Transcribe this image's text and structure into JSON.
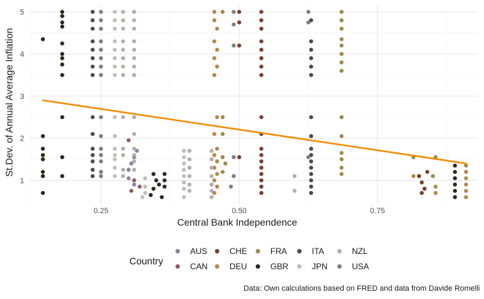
{
  "chart_data": {
    "type": "scatter",
    "xlabel": "Central Bank Independence",
    "ylabel": "St.Dev. of Annual Average Inflation",
    "xlim": [
      0.12,
      0.93
    ],
    "ylim": [
      0.45,
      5.15
    ],
    "x_ticks": [
      0.25,
      0.5,
      0.75
    ],
    "x_tick_labels": [
      "0.25",
      "0.50",
      "0.75"
    ],
    "y_ticks": [
      1,
      2,
      3,
      4,
      5
    ],
    "y_tick_labels": [
      "1",
      "2",
      "3",
      "4",
      "5"
    ],
    "grid": true,
    "legend_title": "Country",
    "legend_position": "bottom",
    "caption": "Data: Own calculations based on FRED and data from Davide Romelli",
    "series": [
      {
        "name": "AUS",
        "color": "#8e7fa0",
        "points": [
          [
            0.3,
            1.25
          ],
          [
            0.305,
            1.4
          ],
          [
            0.31,
            1.55
          ],
          [
            0.315,
            1.7
          ],
          [
            0.3,
            1.05
          ],
          [
            0.31,
            0.9
          ]
        ]
      },
      {
        "name": "CAN",
        "color": "#8f5a60",
        "points": [
          [
            0.3,
            1.95
          ],
          [
            0.31,
            1.0
          ],
          [
            0.32,
            0.85
          ],
          [
            0.305,
            0.75
          ]
        ]
      },
      {
        "name": "CHE",
        "color": "#7a3e2c",
        "points": [
          [
            0.54,
            5.0
          ],
          [
            0.54,
            4.8
          ],
          [
            0.54,
            4.6
          ],
          [
            0.54,
            4.3
          ],
          [
            0.54,
            4.1
          ],
          [
            0.54,
            3.9
          ],
          [
            0.54,
            3.7
          ],
          [
            0.54,
            3.5
          ],
          [
            0.54,
            2.5
          ],
          [
            0.54,
            2.1
          ],
          [
            0.54,
            1.75
          ],
          [
            0.54,
            1.6
          ],
          [
            0.54,
            1.45
          ],
          [
            0.54,
            1.3
          ],
          [
            0.54,
            1.15
          ],
          [
            0.54,
            1.0
          ],
          [
            0.54,
            0.85
          ],
          [
            0.54,
            0.7
          ],
          [
            0.5,
            5.0
          ],
          [
            0.5,
            4.75
          ],
          [
            0.5,
            4.2
          ],
          [
            0.5,
            1.55
          ],
          [
            0.825,
            1.1
          ],
          [
            0.83,
            0.95
          ],
          [
            0.835,
            0.8
          ],
          [
            0.83,
            0.7
          ],
          [
            0.84,
            1.2
          ]
        ]
      },
      {
        "name": "DEU",
        "color": "#b08a4a",
        "points": [
          [
            0.455,
            5.0
          ],
          [
            0.455,
            4.8
          ],
          [
            0.46,
            4.6
          ],
          [
            0.455,
            4.3
          ],
          [
            0.46,
            4.1
          ],
          [
            0.455,
            3.9
          ],
          [
            0.46,
            3.7
          ],
          [
            0.455,
            3.5
          ],
          [
            0.46,
            2.5
          ],
          [
            0.455,
            2.1
          ],
          [
            0.46,
            1.75
          ],
          [
            0.455,
            1.6
          ],
          [
            0.46,
            1.45
          ],
          [
            0.455,
            1.3
          ],
          [
            0.46,
            1.15
          ],
          [
            0.455,
            1.0
          ],
          [
            0.46,
            0.85
          ],
          [
            0.455,
            0.7
          ],
          [
            0.815,
            1.1
          ],
          [
            0.855,
            0.85
          ],
          [
            0.855,
            0.7
          ],
          [
            0.91,
            1.2
          ],
          [
            0.91,
            1.05
          ],
          [
            0.91,
            0.9
          ],
          [
            0.91,
            0.75
          ],
          [
            0.91,
            0.6
          ]
        ]
      },
      {
        "name": "FRA",
        "color": "#9e8a4c",
        "points": [
          [
            0.685,
            5.0
          ],
          [
            0.685,
            4.8
          ],
          [
            0.685,
            4.6
          ],
          [
            0.685,
            4.35
          ],
          [
            0.685,
            4.2
          ],
          [
            0.685,
            4.0
          ],
          [
            0.685,
            3.8
          ],
          [
            0.685,
            3.6
          ],
          [
            0.685,
            2.5
          ],
          [
            0.685,
            2.05
          ],
          [
            0.685,
            1.65
          ],
          [
            0.685,
            1.5
          ],
          [
            0.685,
            1.3
          ],
          [
            0.685,
            1.15
          ],
          [
            0.47,
            5.0
          ],
          [
            0.47,
            2.5
          ],
          [
            0.47,
            2.1
          ],
          [
            0.47,
            1.55
          ],
          [
            0.475,
            1.4
          ],
          [
            0.47,
            1.2
          ],
          [
            0.815,
            1.55
          ],
          [
            0.85,
            1.1
          ],
          [
            0.855,
            1.55
          ],
          [
            0.91,
            1.35
          ]
        ]
      },
      {
        "name": "GBR",
        "color": "#2b271b",
        "points": [
          [
            0.18,
            5.0
          ],
          [
            0.18,
            4.9
          ],
          [
            0.18,
            4.75
          ],
          [
            0.18,
            4.65
          ],
          [
            0.18,
            4.25
          ],
          [
            0.18,
            4.0
          ],
          [
            0.18,
            3.9
          ],
          [
            0.18,
            3.75
          ],
          [
            0.18,
            3.5
          ],
          [
            0.18,
            2.5
          ],
          [
            0.18,
            1.55
          ],
          [
            0.18,
            1.1
          ],
          [
            0.145,
            4.35
          ],
          [
            0.145,
            2.05
          ],
          [
            0.145,
            1.75
          ],
          [
            0.145,
            1.6
          ],
          [
            0.145,
            1.5
          ],
          [
            0.145,
            1.2
          ],
          [
            0.145,
            1.1
          ],
          [
            0.145,
            0.7
          ],
          [
            0.345,
            1.15
          ],
          [
            0.35,
            1.0
          ],
          [
            0.355,
            0.9
          ],
          [
            0.345,
            0.8
          ],
          [
            0.36,
            0.6
          ],
          [
            0.365,
            1.15
          ],
          [
            0.365,
            1.0
          ],
          [
            0.365,
            0.85
          ],
          [
            0.34,
            0.65
          ],
          [
            0.89,
            1.35
          ],
          [
            0.89,
            1.2
          ],
          [
            0.89,
            1.05
          ],
          [
            0.89,
            0.9
          ],
          [
            0.89,
            0.75
          ],
          [
            0.89,
            0.6
          ]
        ]
      },
      {
        "name": "ITA",
        "color": "#4a4a4a",
        "points": [
          [
            0.235,
            5.0
          ],
          [
            0.235,
            4.8
          ],
          [
            0.235,
            4.6
          ],
          [
            0.235,
            4.3
          ],
          [
            0.235,
            4.1
          ],
          [
            0.235,
            3.9
          ],
          [
            0.235,
            3.7
          ],
          [
            0.235,
            3.5
          ],
          [
            0.235,
            2.5
          ],
          [
            0.235,
            2.1
          ],
          [
            0.235,
            1.75
          ],
          [
            0.235,
            1.6
          ],
          [
            0.235,
            1.45
          ],
          [
            0.235,
            1.25
          ],
          [
            0.235,
            1.1
          ],
          [
            0.63,
            4.8
          ],
          [
            0.63,
            4.3
          ],
          [
            0.63,
            4.1
          ],
          [
            0.63,
            3.9
          ],
          [
            0.63,
            3.7
          ],
          [
            0.63,
            3.5
          ],
          [
            0.63,
            2.5
          ],
          [
            0.63,
            2.05
          ],
          [
            0.63,
            1.75
          ],
          [
            0.63,
            1.6
          ],
          [
            0.63,
            1.45
          ],
          [
            0.63,
            1.3
          ],
          [
            0.63,
            1.15
          ],
          [
            0.63,
            1.0
          ],
          [
            0.63,
            0.85
          ],
          [
            0.63,
            0.7
          ]
        ]
      },
      {
        "name": "JPN",
        "color": "#c4bcbc",
        "points": [
          [
            0.275,
            5.0
          ],
          [
            0.275,
            4.8
          ],
          [
            0.275,
            4.6
          ],
          [
            0.275,
            4.3
          ],
          [
            0.275,
            4.1
          ],
          [
            0.275,
            3.9
          ],
          [
            0.275,
            3.7
          ],
          [
            0.275,
            3.5
          ],
          [
            0.275,
            2.5
          ],
          [
            0.275,
            2.05
          ],
          [
            0.275,
            1.75
          ],
          [
            0.275,
            1.6
          ],
          [
            0.275,
            1.5
          ],
          [
            0.275,
            1.3
          ],
          [
            0.275,
            1.1
          ],
          [
            0.33,
            1.05
          ],
          [
            0.33,
            0.85
          ],
          [
            0.33,
            0.7
          ],
          [
            0.325,
            0.6
          ],
          [
            0.4,
            1.7
          ],
          [
            0.4,
            1.55
          ],
          [
            0.4,
            1.4
          ],
          [
            0.4,
            1.25
          ],
          [
            0.4,
            1.1
          ],
          [
            0.4,
            0.95
          ],
          [
            0.4,
            0.8
          ],
          [
            0.4,
            0.6
          ]
        ]
      },
      {
        "name": "NZL",
        "color": "#b5acac",
        "points": [
          [
            0.31,
            5.0
          ],
          [
            0.31,
            4.8
          ],
          [
            0.31,
            4.6
          ],
          [
            0.31,
            4.3
          ],
          [
            0.31,
            4.1
          ],
          [
            0.31,
            3.9
          ],
          [
            0.31,
            3.7
          ],
          [
            0.31,
            3.5
          ],
          [
            0.31,
            2.5
          ],
          [
            0.31,
            2.1
          ],
          [
            0.31,
            1.75
          ],
          [
            0.31,
            1.6
          ],
          [
            0.31,
            1.45
          ],
          [
            0.31,
            1.25
          ],
          [
            0.29,
            5.0
          ],
          [
            0.29,
            4.8
          ],
          [
            0.29,
            4.6
          ],
          [
            0.29,
            4.3
          ],
          [
            0.29,
            4.1
          ],
          [
            0.29,
            3.9
          ],
          [
            0.29,
            3.7
          ],
          [
            0.29,
            3.5
          ],
          [
            0.29,
            2.5
          ],
          [
            0.29,
            1.75
          ],
          [
            0.29,
            1.6
          ],
          [
            0.29,
            1.25
          ],
          [
            0.29,
            1.1
          ],
          [
            0.41,
            1.7
          ],
          [
            0.41,
            1.5
          ],
          [
            0.41,
            1.3
          ],
          [
            0.41,
            1.1
          ],
          [
            0.41,
            0.9
          ],
          [
            0.41,
            0.75
          ],
          [
            0.45,
            1.7
          ],
          [
            0.45,
            1.5
          ],
          [
            0.45,
            1.3
          ],
          [
            0.45,
            1.1
          ],
          [
            0.45,
            0.9
          ],
          [
            0.45,
            0.75
          ],
          [
            0.45,
            0.6
          ],
          [
            0.6,
            0.75
          ],
          [
            0.6,
            1.1
          ]
        ]
      },
      {
        "name": "USA",
        "color": "#7e7e7e",
        "points": [
          [
            0.25,
            5.0
          ],
          [
            0.25,
            4.8
          ],
          [
            0.25,
            4.6
          ],
          [
            0.25,
            4.3
          ],
          [
            0.25,
            4.1
          ],
          [
            0.25,
            3.9
          ],
          [
            0.25,
            3.7
          ],
          [
            0.25,
            3.5
          ],
          [
            0.25,
            2.5
          ],
          [
            0.25,
            2.05
          ],
          [
            0.25,
            1.75
          ],
          [
            0.25,
            1.6
          ],
          [
            0.25,
            1.45
          ],
          [
            0.25,
            1.2
          ],
          [
            0.25,
            1.1
          ],
          [
            0.49,
            5.0
          ],
          [
            0.49,
            4.7
          ],
          [
            0.49,
            4.2
          ],
          [
            0.49,
            1.55
          ],
          [
            0.49,
            1.1
          ],
          [
            0.485,
            0.85
          ],
          [
            0.625,
            5.0
          ],
          [
            0.625,
            4.75
          ],
          [
            0.625,
            1.55
          ]
        ]
      }
    ],
    "trend_line": {
      "color": "#f28c00",
      "points": [
        [
          0.145,
          2.9
        ],
        [
          0.91,
          1.4
        ]
      ]
    }
  }
}
